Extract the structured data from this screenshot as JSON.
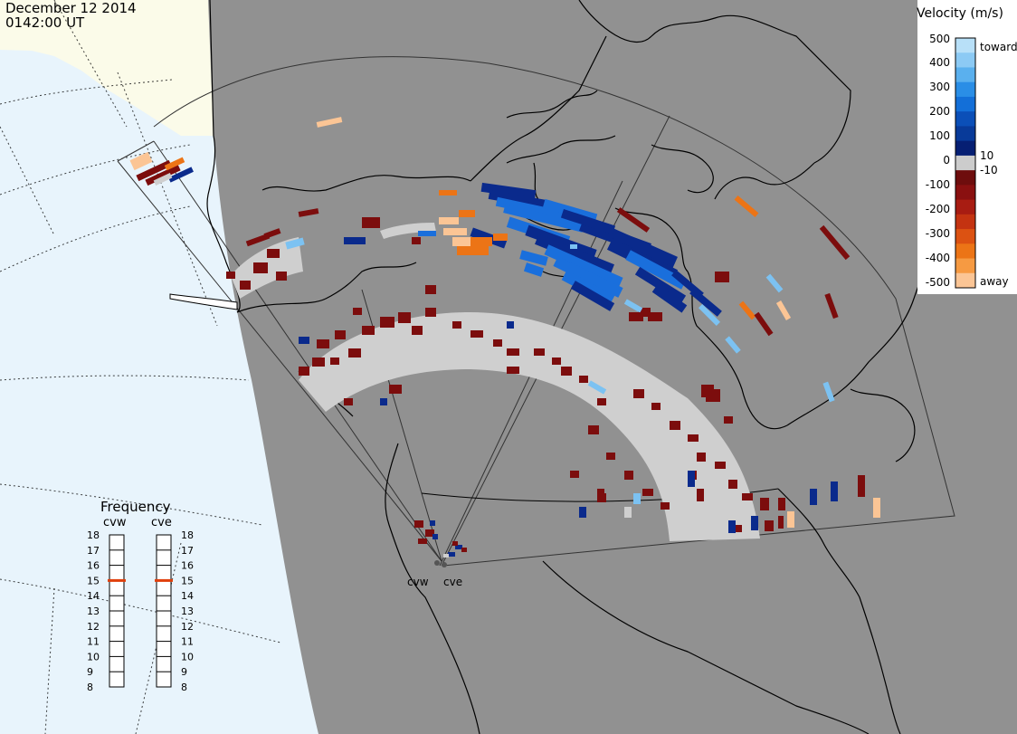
{
  "header": {
    "date": "December 12 2014",
    "time": "0142:00 UT"
  },
  "colors": {
    "ocean": "#e8f4fc",
    "land_outside": "#fbfbe9",
    "map_gray": "#919191",
    "ground_scatter": "#cfcfcf",
    "coast": "#000000"
  },
  "colorbar": {
    "title": "Velocity (m/s)",
    "top_label": "toward",
    "bottom_label": "away",
    "ticks": [
      "500",
      "400",
      "300",
      "200",
      "100",
      "0",
      "-100",
      "-200",
      "-300",
      "-400",
      "-500"
    ],
    "inner_labels": [
      "10",
      "-10"
    ],
    "colors": [
      "#b8e0f8",
      "#8ccaf4",
      "#5ab0ee",
      "#2a8ee6",
      "#136fd8",
      "#0b4fb8",
      "#083a99",
      "#061f73",
      "#cccccc",
      "#6e0d0d",
      "#8a1010",
      "#a81c12",
      "#c43311",
      "#dc5212",
      "#ec7416",
      "#f69a42",
      "#fbc595"
    ]
  },
  "frequency_panel": {
    "title": "Frequency",
    "radars": [
      "cvw",
      "cve"
    ],
    "scale": [
      "18",
      "17",
      "16",
      "15",
      "14",
      "13",
      "12",
      "11",
      "10",
      "9",
      "8"
    ],
    "cvw_mhz": 15,
    "cve_mhz": 15,
    "marker_color": "#e0400d"
  },
  "radar_sites": [
    "cvw",
    "cve"
  ]
}
